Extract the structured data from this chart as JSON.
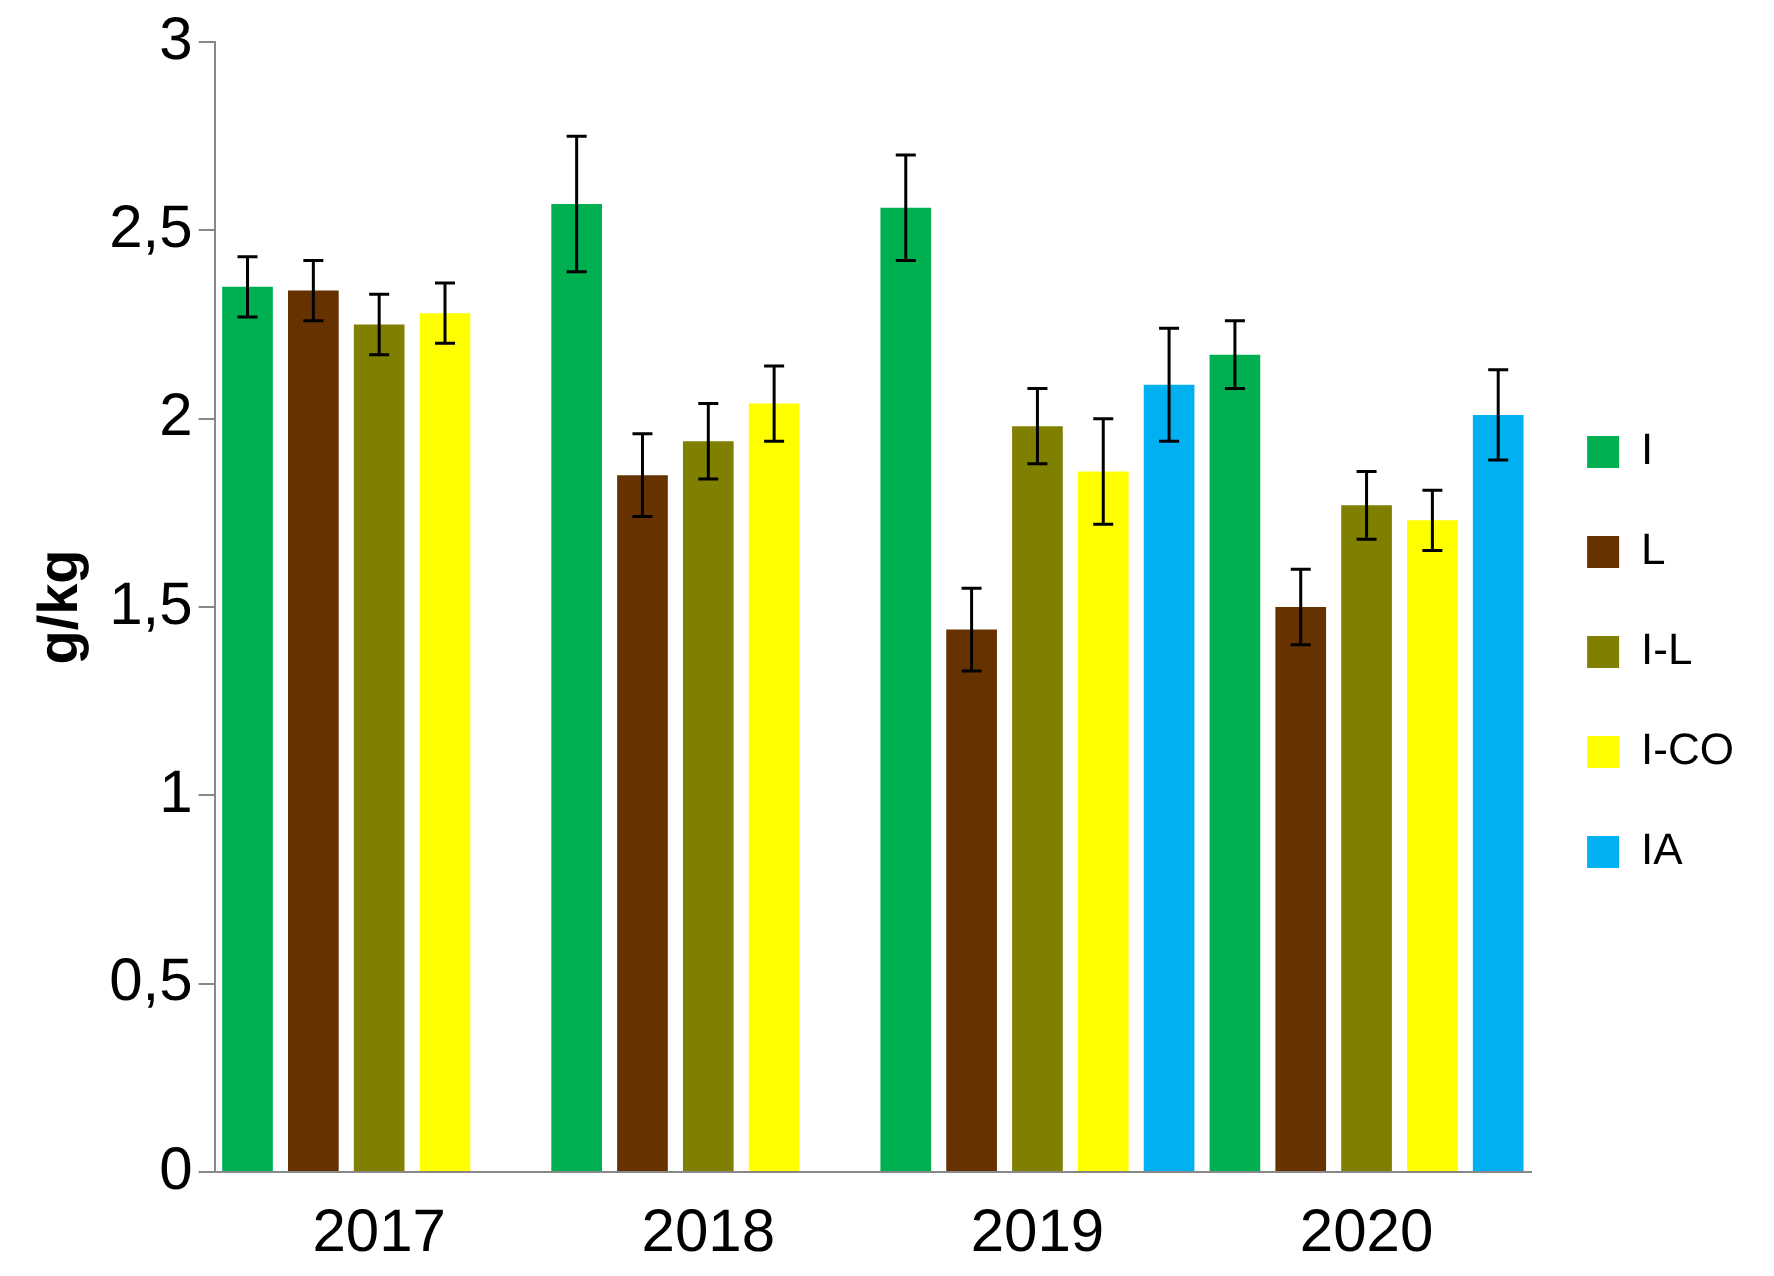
{
  "chart_data": {
    "type": "bar",
    "ylabel": "g/kg",
    "categories": [
      "2017",
      "2018",
      "2019",
      "2020"
    ],
    "series": [
      {
        "name": "I",
        "color": "#00b050",
        "values": [
          2.35,
          2.57,
          2.56,
          2.17
        ],
        "errors": [
          0.08,
          0.18,
          0.14,
          0.09
        ]
      },
      {
        "name": "L",
        "color": "#663300",
        "values": [
          2.34,
          1.85,
          1.44,
          1.5
        ],
        "errors": [
          0.08,
          0.11,
          0.11,
          0.1
        ]
      },
      {
        "name": "I-L",
        "color": "#808000",
        "values": [
          2.25,
          1.94,
          1.98,
          1.77
        ],
        "errors": [
          0.08,
          0.1,
          0.1,
          0.09
        ]
      },
      {
        "name": "I-CO",
        "color": "#ffff00",
        "values": [
          2.28,
          2.04,
          1.86,
          1.73
        ],
        "errors": [
          0.08,
          0.1,
          0.14,
          0.08
        ]
      },
      {
        "name": "IA",
        "color": "#00b0f0",
        "values": [
          null,
          null,
          2.09,
          2.01
        ],
        "errors": [
          null,
          null,
          0.15,
          0.12
        ]
      }
    ],
    "ylim": [
      0,
      3
    ],
    "yticks": [
      0,
      {
        "value": 0.5,
        "label": "0,5"
      },
      1,
      {
        "value": 1.5,
        "label": "1,5"
      },
      2,
      {
        "value": 2.5,
        "label": "2,5"
      },
      3
    ],
    "grid": false,
    "legend": "right"
  }
}
